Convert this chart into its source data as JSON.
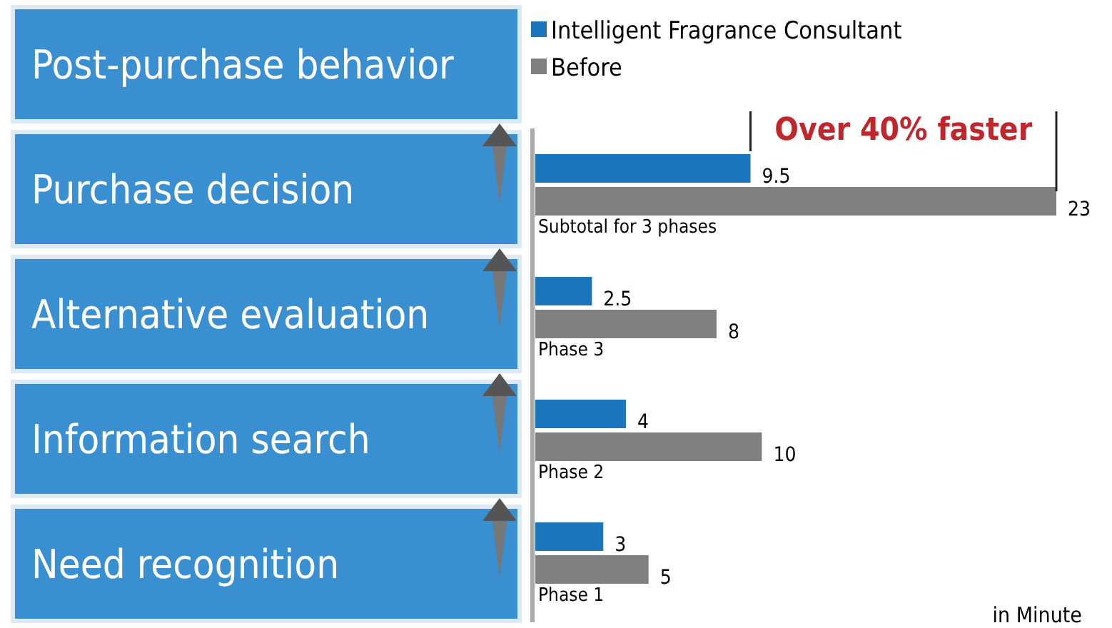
{
  "chart_data": {
    "type": "bar",
    "orientation": "horizontal",
    "categories": [
      "Subtotal for 3 phases",
      "Phase 3",
      "Phase 2",
      "Phase 1"
    ],
    "series": [
      {
        "name": "Intelligent Fragrance Consultant",
        "color": "#1b75bc",
        "values": [
          9.5,
          2.5,
          4,
          3
        ]
      },
      {
        "name": "Before",
        "color": "#808080",
        "values": [
          23,
          8,
          10,
          5
        ]
      }
    ],
    "data_labels": true,
    "legend": "top",
    "annotations": [
      "Post-purchase behavior",
      "Purchase decision",
      "Alternative evaluation",
      "Information search",
      "Need recognition",
      "Over 40% faster",
      "in Minute"
    ]
  }
}
